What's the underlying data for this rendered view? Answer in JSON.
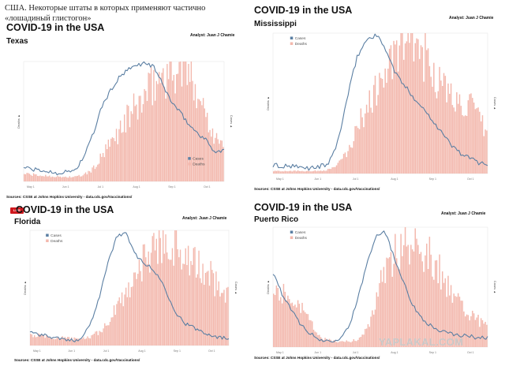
{
  "caption": "США. Некоторые штаты в которых применяют частично «лошадиный глистогон»",
  "watermark": "YAPLAKAL.COM",
  "live_badge": "LIVE",
  "colors": {
    "cases_line": "#5b7fa3",
    "deaths_bar": "#f3b8ad"
  },
  "chart_data": [
    {
      "type": "line",
      "title": "COVID-19 in the USA",
      "state": "Texas",
      "analyst": "Analyst: Juan J Chamie",
      "source": "Sources: CSSE at Johns Hopkins University - data.cdc.gov/Vaccinations/",
      "xlabel": "",
      "ylabel_left": "Deaths ▲",
      "ylabel_right": "Cases ▲",
      "x_ticks": [
        "May 1",
        "Jun 1",
        "Jul 1",
        "Aug 1",
        "Sep 1",
        "Oct 1"
      ],
      "legend": {
        "position": "bottom-right",
        "entries": [
          "Cases",
          "Deaths"
        ]
      },
      "x": [
        "May 1",
        "May 11",
        "May 21",
        "Jun 1",
        "Jun 11",
        "Jun 21",
        "Jul 1",
        "Jul 11",
        "Jul 21",
        "Aug 1",
        "Aug 6",
        "Aug 11",
        "Aug 16",
        "Aug 21",
        "Aug 26",
        "Sep 1",
        "Sep 6",
        "Sep 11",
        "Sep 16",
        "Sep 21",
        "Sep 26",
        "Oct 1",
        "Oct 6",
        "Oct 11"
      ],
      "series": [
        {
          "name": "Cases",
          "values": [
            0.12,
            0.1,
            0.09,
            0.08,
            0.07,
            0.08,
            0.1,
            0.22,
            0.4,
            0.63,
            0.76,
            0.87,
            0.93,
            0.97,
            0.99,
            0.95,
            0.8,
            0.66,
            0.57,
            0.47,
            0.4,
            0.34,
            0.24,
            0.26
          ]
        },
        {
          "name": "Deaths",
          "values": [
            0.07,
            0.06,
            0.05,
            0.05,
            0.04,
            0.04,
            0.04,
            0.06,
            0.11,
            0.22,
            0.33,
            0.45,
            0.57,
            0.66,
            0.75,
            0.86,
            0.94,
            0.97,
            0.98,
            0.95,
            0.82,
            0.58,
            0.4,
            0.28
          ]
        }
      ]
    },
    {
      "type": "line",
      "title": "COVID-19 in the USA",
      "state": "Mississippi",
      "analyst": "Analyst: Juan J Chamie",
      "source": "Sources: CSSE at Johns Hopkins University - data.cdc.gov/Vaccinations/",
      "xlabel": "",
      "ylabel_left": "Deaths ▲",
      "ylabel_right": "Cases ▲",
      "x_ticks": [
        "May 1",
        "Jun 1",
        "Jul 1",
        "Aug 1",
        "Sep 1",
        "Oct 1"
      ],
      "legend": {
        "position": "top-left",
        "entries": [
          "Cases",
          "Deaths"
        ]
      },
      "x": [
        "May 1",
        "May 11",
        "May 21",
        "Jun 1",
        "Jun 11",
        "Jun 21",
        "Jul 1",
        "Jul 11",
        "Jul 21",
        "Aug 1",
        "Aug 6",
        "Aug 11",
        "Aug 16",
        "Aug 21",
        "Aug 26",
        "Sep 1",
        "Sep 6",
        "Sep 11",
        "Sep 16",
        "Sep 21",
        "Sep 26",
        "Oct 1",
        "Oct 6",
        "Oct 11"
      ],
      "series": [
        {
          "name": "Cases",
          "values": [
            0.06,
            0.05,
            0.05,
            0.04,
            0.04,
            0.05,
            0.07,
            0.24,
            0.55,
            0.83,
            0.95,
            0.99,
            0.9,
            0.73,
            0.63,
            0.55,
            0.47,
            0.39,
            0.3,
            0.21,
            0.15,
            0.11,
            0.08,
            0.07
          ]
        },
        {
          "name": "Deaths",
          "values": [
            0.02,
            0.02,
            0.02,
            0.02,
            0.02,
            0.02,
            0.03,
            0.07,
            0.16,
            0.33,
            0.5,
            0.62,
            0.75,
            0.86,
            0.96,
            0.99,
            0.92,
            0.81,
            0.67,
            0.58,
            0.54,
            0.52,
            0.41,
            0.3
          ]
        }
      ]
    },
    {
      "type": "line",
      "title": "COVID-19 in the USA",
      "state": "Florida",
      "analyst": "Analyst: Juan J Chamie",
      "source": "Sources: CSSE at Johns Hopkins University - data.cdc.gov/Vaccinations/",
      "xlabel": "",
      "ylabel_left": "Deaths ▲",
      "ylabel_right": "Cases ▲",
      "x_ticks": [
        "May 1",
        "Jun 1",
        "Jul 1",
        "Aug 1",
        "Sep 1",
        "Oct 1"
      ],
      "legend": {
        "position": "top-left",
        "entries": [
          "Cases",
          "Deaths"
        ]
      },
      "x": [
        "May 1",
        "May 11",
        "May 21",
        "Jun 1",
        "Jun 11",
        "Jun 21",
        "Jul 1",
        "Jul 11",
        "Jul 21",
        "Aug 1",
        "Aug 6",
        "Aug 11",
        "Aug 16",
        "Aug 21",
        "Aug 26",
        "Sep 1",
        "Sep 6",
        "Sep 11",
        "Sep 16",
        "Sep 21",
        "Sep 26",
        "Oct 1",
        "Oct 6",
        "Oct 11"
      ],
      "series": [
        {
          "name": "Cases",
          "values": [
            0.12,
            0.1,
            0.08,
            0.07,
            0.05,
            0.04,
            0.07,
            0.19,
            0.42,
            0.71,
            0.94,
            0.99,
            0.81,
            0.73,
            0.67,
            0.59,
            0.43,
            0.27,
            0.19,
            0.15,
            0.12,
            0.09,
            0.07,
            0.06
          ]
        },
        {
          "name": "Deaths",
          "values": [
            0.1,
            0.09,
            0.08,
            0.07,
            0.07,
            0.06,
            0.06,
            0.08,
            0.12,
            0.21,
            0.33,
            0.48,
            0.62,
            0.76,
            0.86,
            0.94,
            0.99,
            0.93,
            0.84,
            0.74,
            0.68,
            0.63,
            0.53,
            0.45
          ]
        }
      ]
    },
    {
      "type": "line",
      "title": "COVID-19 in the USA",
      "state": "Puerto Rico",
      "analyst": "Analyst: Juan J Chamie",
      "source": "Sources: CSSE at Johns Hopkins University - data.cdc.gov/Vaccinations/",
      "xlabel": "",
      "ylabel_left": "Deaths ▲",
      "ylabel_right": "Cases ▲",
      "x_ticks": [
        "May 1",
        "Jun 1",
        "Jul 1",
        "Aug 1",
        "Sep 1",
        "Oct 1"
      ],
      "legend": {
        "position": "top-left",
        "entries": [
          "Cases",
          "Deaths"
        ]
      },
      "x": [
        "May 1",
        "May 11",
        "May 21",
        "Jun 1",
        "Jun 11",
        "Jun 21",
        "Jul 1",
        "Jul 11",
        "Jul 21",
        "Aug 1",
        "Aug 6",
        "Aug 11",
        "Aug 16",
        "Aug 21",
        "Aug 26",
        "Sep 1",
        "Sep 6",
        "Sep 11",
        "Sep 16",
        "Sep 21",
        "Sep 26",
        "Oct 1",
        "Oct 6",
        "Oct 11"
      ],
      "series": [
        {
          "name": "Cases",
          "values": [
            0.62,
            0.44,
            0.3,
            0.19,
            0.11,
            0.06,
            0.05,
            0.07,
            0.15,
            0.37,
            0.68,
            0.93,
            0.97,
            0.74,
            0.55,
            0.34,
            0.24,
            0.17,
            0.13,
            0.11,
            0.1,
            0.09,
            0.08,
            0.08
          ]
        },
        {
          "name": "Deaths",
          "values": [
            0.53,
            0.49,
            0.47,
            0.38,
            0.21,
            0.09,
            0.06,
            0.05,
            0.05,
            0.06,
            0.14,
            0.4,
            0.67,
            0.83,
            0.92,
            0.97,
            0.88,
            0.8,
            0.65,
            0.5,
            0.4,
            0.31,
            0.24,
            0.18
          ]
        }
      ]
    }
  ]
}
